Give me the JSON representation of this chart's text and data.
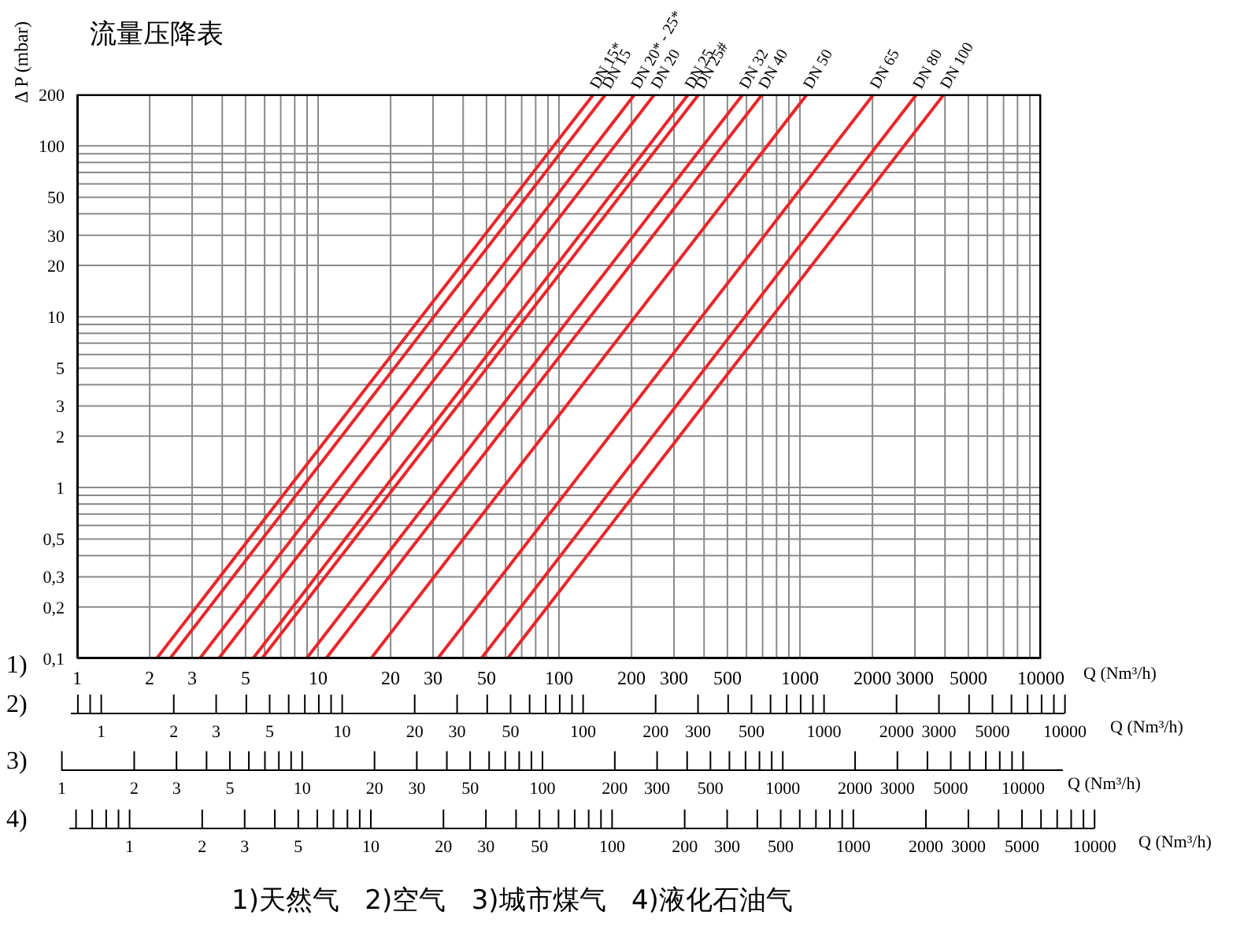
{
  "chart_data": [
    {
      "type": "line",
      "title": "流量压降表",
      "ylabel": "Δ P (mbar)",
      "xlabel": "Q (Nm³/h)",
      "log": "xy",
      "grid": true,
      "xlim": [
        1,
        10000
      ],
      "ylim": [
        0.1,
        200
      ],
      "xticks": [
        1,
        2,
        3,
        {
          "value": 4,
          "label": null
        },
        5,
        {
          "value": 6,
          "label": null
        },
        {
          "value": 7,
          "label": null
        },
        {
          "value": 8,
          "label": null
        },
        {
          "value": 9,
          "label": null
        },
        10,
        20,
        30,
        {
          "value": 40,
          "label": null
        },
        50,
        {
          "value": 60,
          "label": null
        },
        {
          "value": 70,
          "label": null
        },
        {
          "value": 80,
          "label": null
        },
        {
          "value": 90,
          "label": null
        },
        100,
        200,
        300,
        {
          "value": 400,
          "label": null
        },
        500,
        {
          "value": 600,
          "label": null
        },
        {
          "value": 700,
          "label": null
        },
        {
          "value": 800,
          "label": null
        },
        {
          "value": 900,
          "label": null
        },
        1000,
        2000,
        3000,
        {
          "value": 4000,
          "label": null
        },
        5000,
        {
          "value": 6000,
          "label": null
        },
        {
          "value": 7000,
          "label": null
        },
        {
          "value": 8000,
          "label": null
        },
        {
          "value": 9000,
          "label": null
        },
        10000
      ],
      "yticks": [
        {
          "value": 0.1,
          "label": "0,1"
        },
        {
          "value": 0.2,
          "label": "0,2"
        },
        {
          "value": 0.3,
          "label": "0,3"
        },
        {
          "value": 0.4,
          "label": null
        },
        {
          "value": 0.5,
          "label": "0,5"
        },
        {
          "value": 0.6,
          "label": null
        },
        {
          "value": 0.7,
          "label": null
        },
        {
          "value": 0.8,
          "label": null
        },
        {
          "value": 0.9,
          "label": null
        },
        1,
        2,
        3,
        {
          "value": 4,
          "label": null
        },
        5,
        {
          "value": 6,
          "label": null
        },
        {
          "value": 7,
          "label": null
        },
        {
          "value": 8,
          "label": null
        },
        {
          "value": 9,
          "label": null
        },
        10,
        20,
        30,
        {
          "value": 40,
          "label": null
        },
        50,
        {
          "value": 60,
          "label": null
        },
        {
          "value": 70,
          "label": null
        },
        {
          "value": 80,
          "label": null
        },
        {
          "value": 90,
          "label": null
        },
        100,
        200
      ],
      "series": [
        {
          "name": "DN 15*",
          "color": "#e8262a",
          "x": [
            2.14,
            139
          ],
          "values": [
            0.1,
            200
          ]
        },
        {
          "name": "DN 15",
          "color": "#e8262a",
          "x": [
            2.43,
            156
          ],
          "values": [
            0.1,
            200
          ]
        },
        {
          "name": "DN 20* - 25*",
          "color": "#e8262a",
          "x": [
            3.23,
            206
          ],
          "values": [
            0.1,
            200
          ]
        },
        {
          "name": "DN 20",
          "color": "#e8262a",
          "x": [
            3.87,
            249
          ],
          "values": [
            0.1,
            200
          ]
        },
        {
          "name": "DN 25",
          "color": "#e8262a",
          "x": [
            5.37,
            344
          ],
          "values": [
            0.1,
            200
          ]
        },
        {
          "name": "DN 25#",
          "color": "#e8262a",
          "x": [
            5.85,
            380
          ],
          "values": [
            0.1,
            200
          ]
        },
        {
          "name": "DN 32",
          "color": "#e8262a",
          "x": [
            8.96,
            579
          ],
          "values": [
            0.1,
            200
          ]
        },
        {
          "name": "DN 40",
          "color": "#e8262a",
          "x": [
            10.8,
            697
          ],
          "values": [
            0.1,
            200
          ]
        },
        {
          "name": "DN 50",
          "color": "#e8262a",
          "x": [
            16.6,
            1069
          ],
          "values": [
            0.1,
            200
          ]
        },
        {
          "name": "DN 65",
          "color": "#e8262a",
          "x": [
            31.4,
            2020
          ],
          "values": [
            0.1,
            200
          ]
        },
        {
          "name": "DN 80",
          "color": "#e8262a",
          "x": [
            47.6,
            3046
          ],
          "values": [
            0.1,
            200
          ]
        },
        {
          "name": "DN 100",
          "color": "#e8262a",
          "x": [
            61.2,
            3958
          ],
          "values": [
            0.1,
            200
          ]
        }
      ],
      "annotations": [
        "1)",
        "1)天然气   2)空气   3)城市煤气   4)液化石油气"
      ]
    },
    {
      "type": "other",
      "annotations": [
        "2)",
        "1",
        "2",
        "3",
        "5",
        "10",
        "20",
        "30",
        "50",
        "100",
        "200",
        "300",
        "500",
        "1000",
        "2000",
        "3000",
        "5000",
        "10000",
        "Q (Nm³/h)"
      ]
    },
    {
      "type": "other",
      "annotations": [
        "3)",
        "1",
        "2",
        "3",
        "5",
        "10",
        "20",
        "30",
        "50",
        "100",
        "200",
        "300",
        "500",
        "1000",
        "2000",
        "3000",
        "5000",
        "10000",
        "Q (Nm³/h)"
      ]
    },
    {
      "type": "other",
      "annotations": [
        "4)",
        "1",
        "2",
        "3",
        "5",
        "10",
        "20",
        "30",
        "50",
        "100",
        "200",
        "300",
        "500",
        "1000",
        "2000",
        "3000",
        "5000",
        "10000",
        "Q (Nm³/h)"
      ]
    }
  ]
}
